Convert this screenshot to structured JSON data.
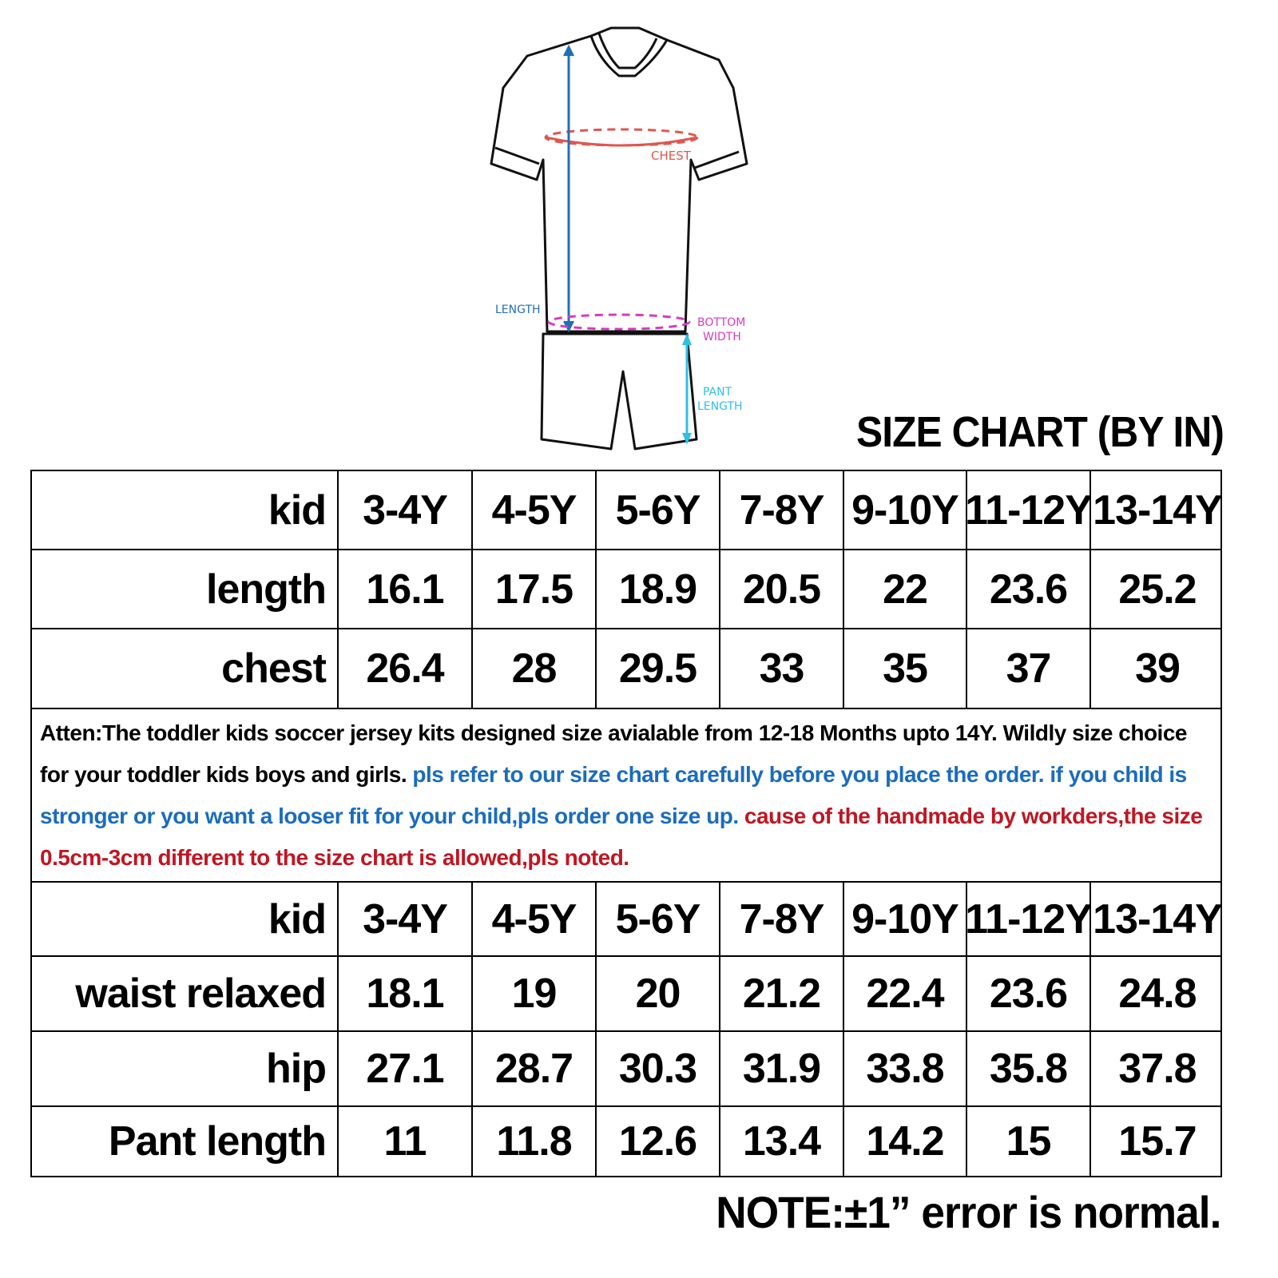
{
  "diagram": {
    "labels": {
      "chest": "CHEST",
      "length": "LENGTH",
      "bottom_width_1": "BOTTOM",
      "bottom_width_2": "WIDTH",
      "pant_length_1": "PANT",
      "pant_length_2": "LENGTH"
    },
    "colors": {
      "chest": "#e0564f",
      "length": "#1f6fb8",
      "bottom_width": "#d63cc0",
      "pant_length": "#2ec0e6"
    }
  },
  "title": "SIZE CHART (BY IN)",
  "top_table": {
    "header": [
      "kid",
      "3-4Y",
      "4-5Y",
      "5-6Y",
      "7-8Y",
      "9-10Y",
      "11-12Y",
      "13-14Y"
    ],
    "rows": [
      [
        "length",
        "16.1",
        "17.5",
        "18.9",
        "20.5",
        "22",
        "23.6",
        "25.2"
      ],
      [
        "chest",
        "26.4",
        "28",
        "29.5",
        "33",
        "35",
        "37",
        "39"
      ]
    ]
  },
  "notes": {
    "black": "Atten:The toddler kids soccer jersey kits designed size avialable from 12-18 Months upto 14Y. Wildly size choice for your toddler kids boys and girls.",
    "blue": "pls refer to our size chart carefully before you place the order. if you child is stronger or you want a looser fit for your child,pls order one size up.",
    "red": "cause of the handmade by workders,the size 0.5cm-3cm different to the size chart is allowed,pls noted.",
    "colors": {
      "blue": "#1a6cbf",
      "red": "#c01622"
    }
  },
  "bottom_table": {
    "header": [
      "kid",
      "3-4Y",
      "4-5Y",
      "5-6Y",
      "7-8Y",
      "9-10Y",
      "11-12Y",
      "13-14Y"
    ],
    "rows": [
      [
        "waist relaxed",
        "18.1",
        "19",
        "20",
        "21.2",
        "22.4",
        "23.6",
        "24.8"
      ],
      [
        "hip",
        "27.1",
        "28.7",
        "30.3",
        "31.9",
        "33.8",
        "35.8",
        "37.8"
      ],
      [
        "Pant length",
        "11",
        "11.8",
        "12.6",
        "13.4",
        "14.2",
        "15",
        "15.7"
      ]
    ]
  },
  "footer_note": "NOTE:±1” error is normal."
}
